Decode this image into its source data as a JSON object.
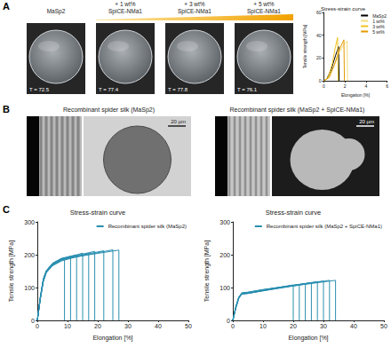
{
  "panel_labels": [
    "A",
    "B",
    "C"
  ],
  "films": [
    {
      "label": [
        "MaSp2"
      ],
      "transmittance": "T = 72.5"
    },
    {
      "label": [
        "+ 1 wt%",
        "SpiCE-NMa1"
      ],
      "transmittance": "T = 77.4"
    },
    {
      "label": [
        "+ 3 wt%",
        "SpiCE-NMa1"
      ],
      "transmittance": "T = 77.8"
    },
    {
      "label": [
        "+ 5 wt%",
        "SpiCE-NMa1"
      ],
      "transmittance": "T = 76.1"
    }
  ],
  "micrographs": [
    {
      "title": "Recombinant spider silk (MaSp2)",
      "scale_bar": "20 µm"
    },
    {
      "title": "Recombinant spider silk (MaSp2 + SpiCE-NMa1)",
      "scale_bar": "20 µm"
    }
  ],
  "chart_data": [
    {
      "type": "line",
      "title": "Stress-strain curve",
      "xlabel": "Elongation [%]",
      "ylabel": "Tensile strength [MPa]",
      "xlim": [
        0,
        6
      ],
      "ylim": [
        0,
        60
      ],
      "xticks": [
        0,
        2,
        4,
        6
      ],
      "yticks": [
        0,
        20,
        40,
        60
      ],
      "grid": false,
      "legend": "upper right",
      "series": [
        {
          "name": "MaSp2",
          "color": "#000000",
          "values": [
            [
              [
                0,
                0
              ],
              [
                0.3,
                2
              ],
              [
                0.7,
                10
              ],
              [
                1.1,
                22
              ],
              [
                1.4,
                30
              ],
              [
                1.45,
                0
              ]
            ]
          ]
        },
        {
          "name": "1 wt%",
          "color": "#f3dc7a",
          "values": [
            [
              [
                0,
                0
              ],
              [
                0.5,
                3
              ],
              [
                1.0,
                14
              ],
              [
                1.5,
                26
              ],
              [
                2.0,
                33
              ],
              [
                2.2,
                35
              ],
              [
                2.25,
                0
              ]
            ]
          ]
        },
        {
          "name": "3 wt%",
          "color": "#f0c21e",
          "values": [
            [
              [
                0,
                0
              ],
              [
                0.4,
                3
              ],
              [
                0.8,
                15
              ],
              [
                1.1,
                30
              ],
              [
                1.3,
                38
              ],
              [
                1.35,
                0
              ]
            ]
          ]
        },
        {
          "name": "5 wt%",
          "color": "#e39a00",
          "values": [
            [
              [
                0,
                0
              ],
              [
                0.5,
                3
              ],
              [
                1.0,
                14
              ],
              [
                1.5,
                28
              ],
              [
                1.9,
                36
              ],
              [
                1.95,
                0
              ]
            ]
          ]
        }
      ]
    },
    {
      "type": "line",
      "title": "Stress-strain curve",
      "xlabel": "Elongation [%]",
      "ylabel": "Tensile strength [MPa]",
      "xlim": [
        0,
        50
      ],
      "ylim": [
        0,
        300
      ],
      "xticks": [
        0,
        10,
        20,
        30,
        40,
        50
      ],
      "yticks": [
        0,
        100,
        200,
        300
      ],
      "grid": false,
      "legend": "upper right",
      "series": [
        {
          "name": "Recombinant spider silk (MaSp2)",
          "color": "#2a8fb0",
          "values": [
            [
              [
                0,
                0
              ],
              [
                1,
                70
              ],
              [
                2,
                125
              ],
              [
                3,
                150
              ],
              [
                5,
                172
              ],
              [
                8,
                186
              ],
              [
                9,
                188
              ],
              [
                9,
                0
              ]
            ],
            [
              [
                0,
                0
              ],
              [
                1,
                66
              ],
              [
                2,
                120
              ],
              [
                3,
                147
              ],
              [
                5,
                168
              ],
              [
                8,
                183
              ],
              [
                11,
                195
              ],
              [
                11,
                0
              ]
            ],
            [
              [
                0,
                0
              ],
              [
                1,
                72
              ],
              [
                2,
                128
              ],
              [
                3,
                152
              ],
              [
                5,
                174
              ],
              [
                8,
                189
              ],
              [
                13,
                200
              ],
              [
                13,
                0
              ]
            ],
            [
              [
                0,
                0
              ],
              [
                1,
                68
              ],
              [
                2,
                122
              ],
              [
                3,
                149
              ],
              [
                5,
                170
              ],
              [
                8,
                185
              ],
              [
                15,
                205
              ],
              [
                15,
                0
              ]
            ],
            [
              [
                0,
                0
              ],
              [
                1,
                64
              ],
              [
                2,
                118
              ],
              [
                3,
                145
              ],
              [
                5,
                166
              ],
              [
                8,
                181
              ],
              [
                17,
                204
              ],
              [
                17,
                0
              ]
            ],
            [
              [
                0,
                0
              ],
              [
                1,
                71
              ],
              [
                2,
                126
              ],
              [
                3,
                151
              ],
              [
                5,
                173
              ],
              [
                8,
                188
              ],
              [
                19,
                210
              ],
              [
                19,
                0
              ]
            ],
            [
              [
                0,
                0
              ],
              [
                1,
                69
              ],
              [
                2,
                124
              ],
              [
                3,
                150
              ],
              [
                5,
                171
              ],
              [
                8,
                187
              ],
              [
                22,
                212
              ],
              [
                22,
                0
              ]
            ],
            [
              [
                0,
                0
              ],
              [
                1,
                67
              ],
              [
                2,
                121
              ],
              [
                3,
                148
              ],
              [
                5,
                169
              ],
              [
                8,
                184
              ],
              [
                25,
                215
              ],
              [
                25,
                0
              ]
            ],
            [
              [
                0,
                0
              ],
              [
                1,
                70
              ],
              [
                2,
                125
              ],
              [
                3,
                151
              ],
              [
                5,
                172
              ],
              [
                8,
                187
              ],
              [
                27,
                214
              ],
              [
                27,
                0
              ]
            ]
          ]
        }
      ]
    },
    {
      "type": "line",
      "title": "Stress-strain curve",
      "xlabel": "Elongation [%]",
      "ylabel": "Tensile strength [MPa]",
      "xlim": [
        0,
        50
      ],
      "ylim": [
        0,
        300
      ],
      "xticks": [
        0,
        10,
        20,
        30,
        40,
        50
      ],
      "yticks": [
        0,
        100,
        200,
        300
      ],
      "grid": false,
      "legend": "upper right",
      "series": [
        {
          "name": "Recombinant spider silk (MaSp2 + SpiCE-NMa1)",
          "color": "#2a8fb0",
          "values": [
            [
              [
                0,
                0
              ],
              [
                1,
                40
              ],
              [
                2,
                70
              ],
              [
                3,
                82
              ],
              [
                5,
                84
              ],
              [
                10,
                92
              ],
              [
                20,
                108
              ],
              [
                20,
                0
              ]
            ],
            [
              [
                0,
                0
              ],
              [
                1,
                38
              ],
              [
                2,
                68
              ],
              [
                3,
                80
              ],
              [
                5,
                82
              ],
              [
                10,
                90
              ],
              [
                22,
                110
              ],
              [
                22,
                0
              ]
            ],
            [
              [
                0,
                0
              ],
              [
                1,
                41
              ],
              [
                2,
                71
              ],
              [
                3,
                83
              ],
              [
                5,
                85
              ],
              [
                10,
                93
              ],
              [
                24,
                112
              ],
              [
                24,
                0
              ]
            ],
            [
              [
                0,
                0
              ],
              [
                1,
                39
              ],
              [
                2,
                69
              ],
              [
                3,
                81
              ],
              [
                5,
                83
              ],
              [
                10,
                91
              ],
              [
                26,
                115
              ],
              [
                26,
                0
              ]
            ],
            [
              [
                0,
                0
              ],
              [
                1,
                40
              ],
              [
                2,
                70
              ],
              [
                3,
                82
              ],
              [
                5,
                84
              ],
              [
                10,
                92
              ],
              [
                28,
                118
              ],
              [
                28,
                0
              ]
            ],
            [
              [
                0,
                0
              ],
              [
                1,
                42
              ],
              [
                2,
                72
              ],
              [
                3,
                84
              ],
              [
                5,
                86
              ],
              [
                10,
                94
              ],
              [
                30,
                120
              ],
              [
                30,
                0
              ]
            ],
            [
              [
                0,
                0
              ],
              [
                1,
                37
              ],
              [
                2,
                67
              ],
              [
                3,
                80
              ],
              [
                5,
                82
              ],
              [
                10,
                90
              ],
              [
                32,
                122
              ],
              [
                32,
                0
              ]
            ],
            [
              [
                0,
                0
              ],
              [
                1,
                40
              ],
              [
                2,
                71
              ],
              [
                3,
                83
              ],
              [
                5,
                85
              ],
              [
                10,
                93
              ],
              [
                34,
                122
              ],
              [
                34,
                0
              ]
            ]
          ]
        }
      ]
    }
  ]
}
